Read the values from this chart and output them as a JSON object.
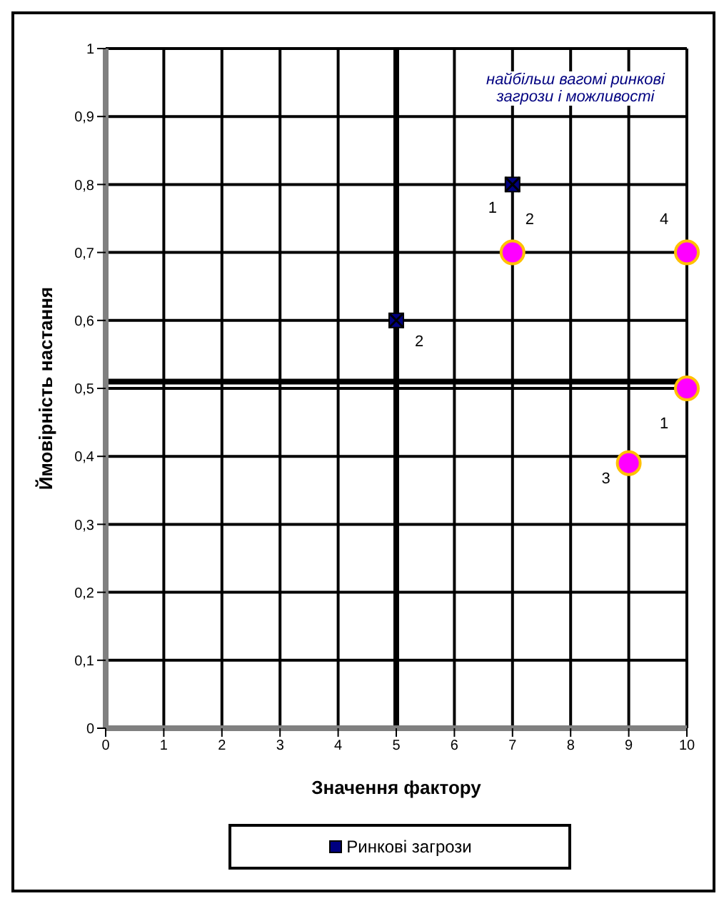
{
  "chart_data": {
    "type": "scatter",
    "xlabel": "Значення фактору",
    "ylabel": "Ймовірність настання",
    "annotations": [
      "найбільш вагомі ринкові загрози і можливості",
      {
        "text": "1",
        "x": 7,
        "y": 0.8
      },
      {
        "text": "2",
        "x": 5,
        "y": 0.6
      },
      {
        "text": "2",
        "x": 7,
        "y": 0.7
      },
      {
        "text": "4",
        "x": 10,
        "y": 0.7
      },
      {
        "text": "1",
        "x": 10,
        "y": 0.5
      },
      {
        "text": "3",
        "x": 9,
        "y": 0.39
      }
    ],
    "xlim": [
      0,
      10
    ],
    "xticks": [
      0,
      1,
      2,
      3,
      4,
      5,
      6,
      7,
      8,
      9,
      10
    ],
    "ylim": [
      0,
      1
    ],
    "yticks": [
      0,
      {
        "value": 0.1,
        "label": "0,1"
      },
      {
        "value": 0.2,
        "label": "0,2"
      },
      {
        "value": 0.3,
        "label": "0,3"
      },
      {
        "value": 0.4,
        "label": "0,4"
      },
      {
        "value": 0.5,
        "label": "0,5"
      },
      {
        "value": 0.6,
        "label": "0,6"
      },
      {
        "value": 0.7,
        "label": "0,7"
      },
      {
        "value": 0.8,
        "label": "0,8"
      },
      {
        "value": 0.9,
        "label": "0,9"
      },
      1
    ],
    "grid": true,
    "legend": "bottom",
    "ref_lines": [
      {
        "axis": "x",
        "value": 5,
        "color": "#000000"
      },
      {
        "axis": "y",
        "value": 0.51,
        "color": "#000000"
      }
    ],
    "series": [
      {
        "name": "Ринкові загрози",
        "color": "#000080",
        "marker": "square",
        "x": [
          7,
          5
        ],
        "values": [
          0.8,
          0.6
        ]
      },
      {
        "color": "#ff00ff",
        "marker": "circle",
        "x": [
          7,
          10,
          10,
          9
        ],
        "values": [
          0.7,
          0.7,
          0.5,
          0.39
        ]
      }
    ]
  }
}
